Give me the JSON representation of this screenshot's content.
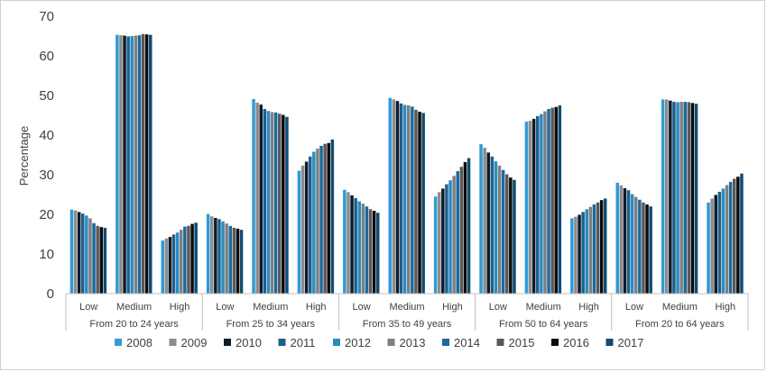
{
  "chart_data": {
    "type": "bar",
    "title": "",
    "ylabel": "Percentage",
    "xlabel": "",
    "ylim": [
      0,
      70
    ],
    "yticks": [
      0,
      10,
      20,
      30,
      40,
      50,
      60,
      70
    ],
    "grid": false,
    "legend_position": "bottom",
    "groups": [
      {
        "label": "From 20 to 24 years",
        "categories": [
          "Low",
          "Medium",
          "High"
        ]
      },
      {
        "label": "From 25 to 34 years",
        "categories": [
          "Low",
          "Medium",
          "High"
        ]
      },
      {
        "label": "From 35 to 49 years",
        "categories": [
          "Low",
          "Medium",
          "High"
        ]
      },
      {
        "label": "From 50 to 64 years",
        "categories": [
          "Low",
          "Medium",
          "High"
        ]
      },
      {
        "label": "From 20 to 64 years",
        "categories": [
          "Low",
          "Medium",
          "High"
        ]
      }
    ],
    "series": [
      {
        "name": "2008",
        "color": "#2e9bd6",
        "values": [
          21.2,
          65.3,
          13.4,
          20.1,
          49.1,
          31.0,
          26.2,
          49.4,
          24.5,
          37.7,
          43.4,
          19.0,
          28.0,
          49.0,
          23.0
        ]
      },
      {
        "name": "2009",
        "color": "#8c8c8c",
        "values": [
          21.0,
          65.2,
          13.9,
          19.5,
          48.2,
          32.3,
          25.6,
          49.0,
          25.6,
          36.8,
          43.6,
          19.4,
          27.3,
          49.0,
          24.0
        ]
      },
      {
        "name": "2010",
        "color": "#0d1b2a",
        "values": [
          20.6,
          65.1,
          14.3,
          19.1,
          47.7,
          33.3,
          24.8,
          48.6,
          26.5,
          35.6,
          44.1,
          19.9,
          26.6,
          48.7,
          24.9
        ]
      },
      {
        "name": "2011",
        "color": "#1f5f8b",
        "values": [
          20.2,
          64.9,
          14.9,
          18.8,
          46.6,
          34.6,
          24.1,
          48.0,
          27.6,
          34.6,
          44.8,
          20.6,
          26.1,
          48.4,
          25.7
        ]
      },
      {
        "name": "2012",
        "color": "#2a8bc4",
        "values": [
          19.7,
          65.0,
          15.4,
          18.2,
          46.1,
          35.8,
          23.3,
          47.6,
          28.6,
          33.4,
          45.3,
          21.3,
          25.1,
          48.3,
          26.5
        ]
      },
      {
        "name": "2013",
        "color": "#7f7f7f",
        "values": [
          19.0,
          65.1,
          16.1,
          17.7,
          45.8,
          36.6,
          22.7,
          47.5,
          29.7,
          32.3,
          46.0,
          21.9,
          24.4,
          48.4,
          27.4
        ]
      },
      {
        "name": "2014",
        "color": "#1b6a9e",
        "values": [
          17.8,
          65.2,
          16.9,
          17.1,
          45.7,
          37.3,
          22.0,
          47.2,
          30.9,
          31.2,
          46.6,
          22.5,
          23.7,
          48.4,
          28.2
        ]
      },
      {
        "name": "2015",
        "color": "#595959",
        "values": [
          17.1,
          65.5,
          17.1,
          16.6,
          45.4,
          37.8,
          21.3,
          46.4,
          32.0,
          30.1,
          46.9,
          23.0,
          23.0,
          48.3,
          29.0
        ]
      },
      {
        "name": "2016",
        "color": "#0b0b0b",
        "values": [
          16.8,
          65.4,
          17.6,
          16.4,
          45.1,
          38.0,
          20.9,
          45.9,
          33.2,
          29.3,
          47.1,
          23.6,
          22.5,
          48.1,
          29.5
        ]
      },
      {
        "name": "2017",
        "color": "#0f4c74",
        "values": [
          16.6,
          65.3,
          17.9,
          16.1,
          44.6,
          38.9,
          20.4,
          45.6,
          34.2,
          28.7,
          47.5,
          24.0,
          22.0,
          47.9,
          30.3
        ]
      }
    ]
  }
}
